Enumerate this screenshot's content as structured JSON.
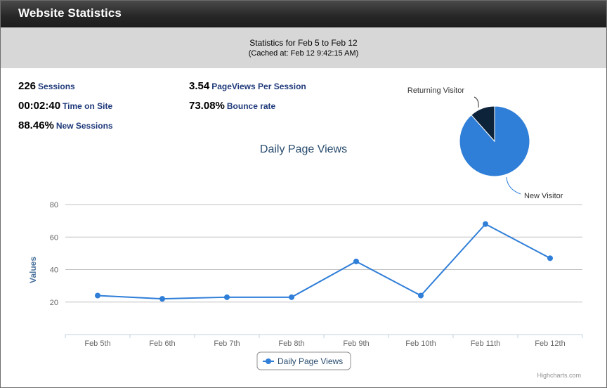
{
  "window": {
    "title": "Website Statistics"
  },
  "header": {
    "period": "Statistics for Feb 5 to Feb 12",
    "cached": "(Cached at: Feb 12 9:42:15 AM)"
  },
  "stats": {
    "sessions": {
      "value": "226",
      "label": "Sessions"
    },
    "time_on_site": {
      "value": "00:02:40",
      "label": "Time on Site"
    },
    "new_sessions": {
      "value": "88.46%",
      "label": "New Sessions"
    },
    "pageviews_per_session": {
      "value": "3.54",
      "label": "PageViews Per Session"
    },
    "bounce_rate": {
      "value": "73.08%",
      "label": "Bounce rate"
    }
  },
  "colors": {
    "series": "#2f7ed8",
    "dark_slice": "#0d233a",
    "stat_label": "#1f3a7a"
  },
  "credits": "Highcharts.com",
  "chart_data": [
    {
      "type": "line",
      "title": "Daily Page Views",
      "ylabel": "Values",
      "categories": [
        "Feb 5th",
        "Feb 6th",
        "Feb 7th",
        "Feb 8th",
        "Feb 9th",
        "Feb 10th",
        "Feb 11th",
        "Feb 12th"
      ],
      "series": [
        {
          "name": "Daily Page Views",
          "values": [
            24,
            22,
            23,
            23,
            45,
            24,
            68,
            47
          ]
        }
      ],
      "ylim": [
        0,
        80
      ],
      "yticks": [
        "20",
        "40",
        "60",
        "80"
      ],
      "grid": true,
      "legend": "bottom-center"
    },
    {
      "type": "pie",
      "labels": [
        "New Visitor",
        "Returning Visitor"
      ],
      "values": [
        88.46,
        11.54
      ]
    }
  ]
}
